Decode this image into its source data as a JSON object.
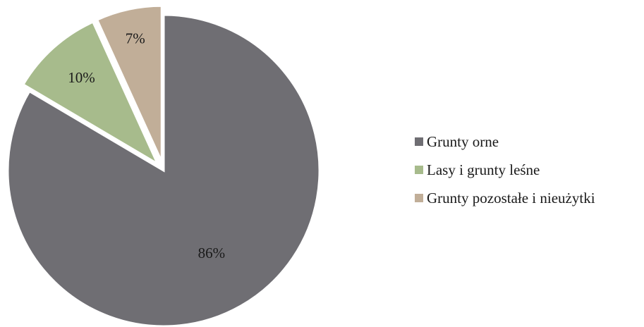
{
  "chart_data": {
    "type": "pie",
    "categories": [
      "Grunty orne",
      "Lasy i grunty leśne",
      "Grunty pozostałe i nieużytki"
    ],
    "values": [
      86,
      10,
      7
    ],
    "data_labels": [
      "86%",
      "10%",
      "7%"
    ],
    "colors": [
      "#6f6e73",
      "#a7bb8c",
      "#c1ae98"
    ],
    "start_angle_deg": 0,
    "direction": "clockwise",
    "exploded": true,
    "legend_placement": "right"
  }
}
